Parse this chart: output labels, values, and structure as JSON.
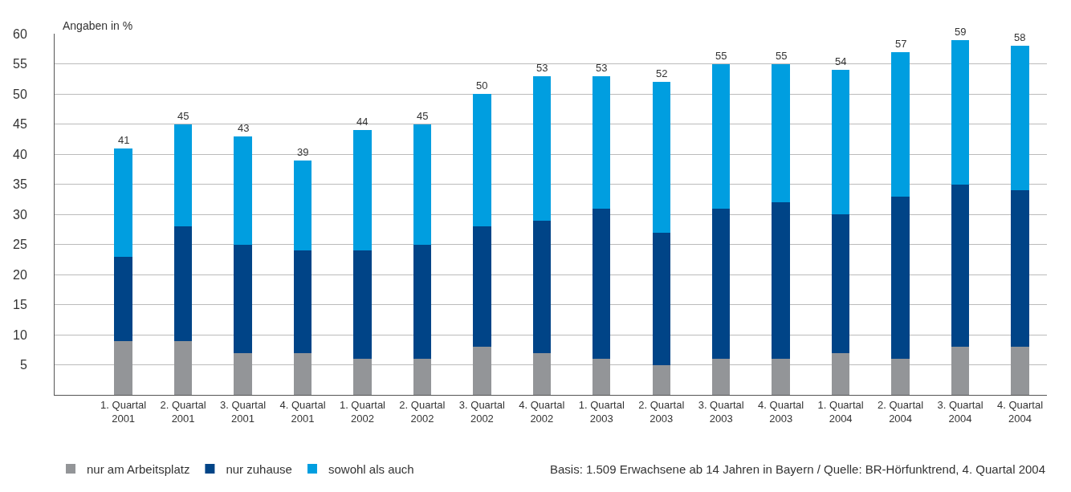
{
  "chart_data": {
    "type": "bar",
    "stacked": true,
    "ylabel": "Angaben in %",
    "categories": [
      "1. Quartal\n2001",
      "2. Quartal\n2001",
      "3. Quartal\n2001",
      "4. Quartal\n2001",
      "1. Quartal\n2002",
      "2. Quartal\n2002",
      "3. Quartal\n2002",
      "4. Quartal\n2002",
      "1. Quartal\n2003",
      "2. Quartal\n2003",
      "3. Quartal\n2003",
      "4. Quartal\n2003",
      "1. Quartal\n2004",
      "2. Quartal\n2004",
      "3. Quartal\n2004",
      "4. Quartal\n2004"
    ],
    "series": [
      {
        "name": "nur am Arbeitsplatz",
        "color": "#939598",
        "values": [
          9,
          9,
          7,
          7,
          6,
          6,
          8,
          7,
          6,
          5,
          6,
          6,
          7,
          6,
          8,
          8
        ]
      },
      {
        "name": "nur zuhause",
        "color": "#004487",
        "values": [
          14,
          19,
          18,
          17,
          18,
          19,
          20,
          22,
          25,
          22,
          25,
          26,
          23,
          27,
          27,
          26
        ]
      },
      {
        "name": "sowohl als auch",
        "color": "#009ee0",
        "values": [
          18,
          17,
          18,
          15,
          20,
          20,
          22,
          24,
          22,
          25,
          24,
          23,
          24,
          24,
          24,
          24
        ]
      }
    ],
    "totals": [
      "41",
      "45",
      "43",
      "39",
      "44",
      "45",
      "50",
      "53",
      "53",
      "52",
      "55",
      "55",
      "54",
      "57",
      "59",
      "58"
    ],
    "ylim": [
      0,
      60
    ],
    "yticks": [
      5,
      10,
      15,
      20,
      25,
      30,
      35,
      40,
      45,
      50,
      55,
      60
    ],
    "grid": "y",
    "legend": "bottom left",
    "annotations": [
      "Basis: 1.509 Erwachsene ab 14 Jahren in Bayern / Quelle: BR-Hörfunktrend, 4. Quartal 2004"
    ]
  }
}
